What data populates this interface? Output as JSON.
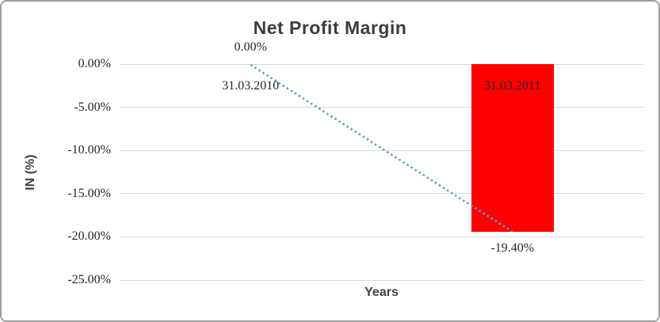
{
  "chart_data": {
    "type": "bar",
    "title": "Net Profit Margin",
    "xlabel": "Years",
    "ylabel": "IN (%)",
    "categories": [
      "31.03.2010",
      "31.03.2011"
    ],
    "series": [
      {
        "name": "Net Profit Margin",
        "values": [
          0,
          -19.4
        ]
      }
    ],
    "data_labels": [
      "0.00%",
      "-19.40%"
    ],
    "y_tick_values": [
      0,
      -5,
      -10,
      -15,
      -20,
      -25
    ],
    "y_tick_labels": [
      "0.00%",
      "-5.00%",
      "-10.00%",
      "-15.00%",
      "-20.00%",
      "-25.00%"
    ],
    "ylim": [
      -25,
      0
    ],
    "grid": true,
    "legend": "none",
    "trendline": {
      "style": "dotted",
      "from_category": 0,
      "to_category": 1
    },
    "colors": {
      "bar": "#ff0000",
      "trendline": "#5b9bd5",
      "gridline": "#d9d9d9",
      "title_text": "#3d3d3d",
      "axis_text": "#262626"
    }
  }
}
